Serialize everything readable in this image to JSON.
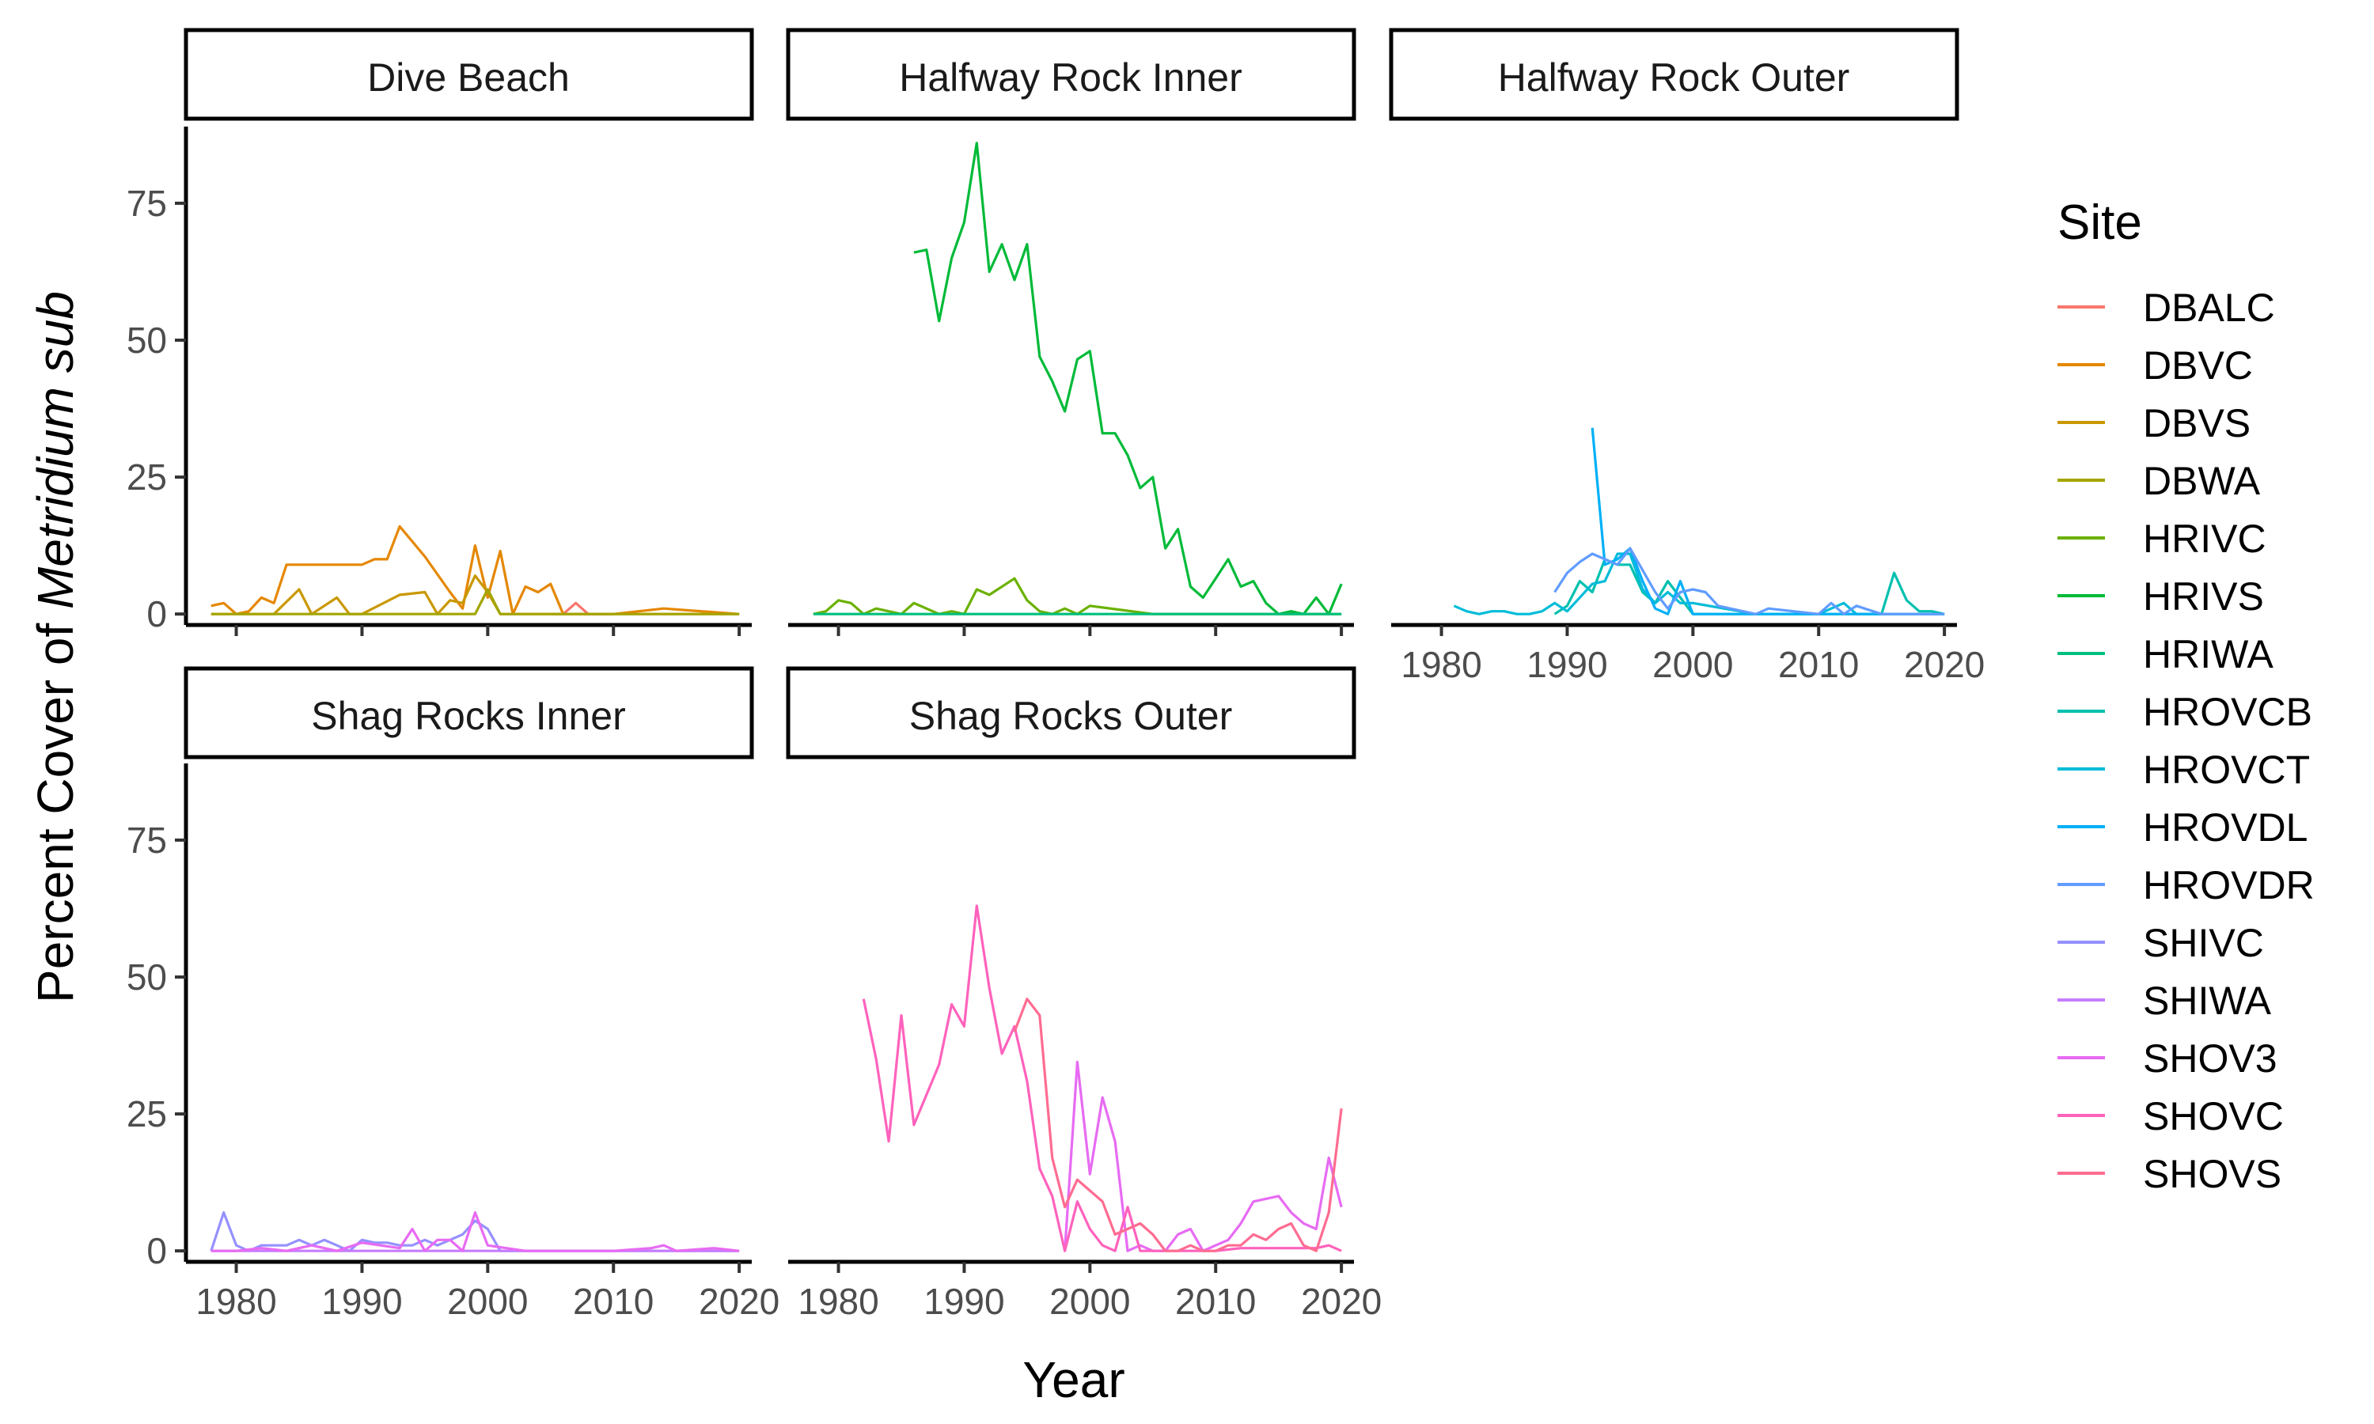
{
  "chart_data": {
    "type": "line",
    "xlabel": "Year",
    "ylabel": {
      "prefix": "Percent Cover of ",
      "italic": "Metridium sub"
    },
    "xlim": [
      1976,
      2021
    ],
    "ylim": [
      -2,
      89
    ],
    "x_ticks": [
      1980,
      1990,
      2000,
      2010,
      2020
    ],
    "y_ticks": [
      0,
      25,
      50,
      75
    ],
    "legend": {
      "title": "Site",
      "placement": "right",
      "entries": [
        {
          "name": "DBALC",
          "color": "#F8766D"
        },
        {
          "name": "DBVC",
          "color": "#E58700"
        },
        {
          "name": "DBVS",
          "color": "#C99800"
        },
        {
          "name": "DBWA",
          "color": "#A3A500"
        },
        {
          "name": "HRIVC",
          "color": "#6BB100"
        },
        {
          "name": "HRIVS",
          "color": "#00BA38"
        },
        {
          "name": "HRIWA",
          "color": "#00BF7D"
        },
        {
          "name": "HROVCB",
          "color": "#00C0AF"
        },
        {
          "name": "HROVCT",
          "color": "#00BCD8"
        },
        {
          "name": "HROVDL",
          "color": "#00B0F6"
        },
        {
          "name": "HROVDR",
          "color": "#619CFF"
        },
        {
          "name": "SHIVC",
          "color": "#9590FF"
        },
        {
          "name": "SHIWA",
          "color": "#C77CFF"
        },
        {
          "name": "SHOV3",
          "color": "#E76BF3"
        },
        {
          "name": "SHOVC",
          "color": "#FF62BC"
        },
        {
          "name": "SHOVS",
          "color": "#FF6C91"
        }
      ]
    },
    "panels": [
      {
        "title": "Dive Beach",
        "series": [
          {
            "name": "DBALC",
            "x": [
              2005,
              2006,
              2007,
              2008,
              2009,
              2010
            ],
            "y": [
              0,
              0,
              2,
              0,
              0,
              0
            ]
          },
          {
            "name": "DBVC",
            "x": [
              1978,
              1979,
              1980,
              1981,
              1982,
              1983,
              1984,
              1990,
              1991,
              1992,
              1993,
              1995,
              1997,
              1998,
              1999,
              2000,
              2001,
              2002,
              2003,
              2004,
              2005,
              2006,
              2007,
              2010,
              2014,
              2020
            ],
            "y": [
              1.5,
              2,
              0,
              0.5,
              3,
              2,
              9,
              9,
              10,
              10,
              16,
              10.5,
              4,
              1,
              12.5,
              3,
              11.5,
              0,
              5,
              4,
              5.5,
              0,
              0,
              0,
              1,
              0
            ]
          },
          {
            "name": "DBVS",
            "x": [
              1978,
              1983,
              1985,
              1986,
              1988,
              1989,
              1990,
              1993,
              1995,
              1996,
              1997,
              1998,
              1999,
              2000,
              2001,
              2002,
              2005,
              2010,
              2015,
              2020
            ],
            "y": [
              0,
              0,
              4.5,
              0,
              3,
              0,
              0,
              3.5,
              4,
              0,
              2.5,
              2,
              7,
              4,
              0,
              0,
              0,
              0,
              0,
              0
            ]
          },
          {
            "name": "DBWA",
            "x": [
              1978,
              1985,
              1990,
              1995,
              1998,
              1999,
              2000,
              2001,
              2002,
              2010,
              2020
            ],
            "y": [
              0,
              0,
              0,
              0,
              0,
              0,
              4.5,
              0,
              0,
              0,
              0
            ]
          }
        ]
      },
      {
        "title": "Halfway Rock Inner",
        "series": [
          {
            "name": "HRIVC",
            "x": [
              1978,
              1979,
              1980,
              1981,
              1982,
              1983,
              1984,
              1985,
              1986,
              1988,
              1989,
              1990,
              1991,
              1992,
              1994,
              1995,
              1996,
              1997,
              1998,
              1999,
              2000,
              2005,
              2010,
              2015,
              2020
            ],
            "y": [
              0,
              0.5,
              2.5,
              2,
              0,
              1,
              0.5,
              0,
              2,
              0,
              0.5,
              0,
              4.5,
              3.5,
              6.5,
              2.5,
              0.5,
              0,
              1,
              0,
              1.5,
              0,
              0,
              0,
              0
            ]
          },
          {
            "name": "HRIVS",
            "x": [
              1986,
              1987,
              1988,
              1989,
              1990,
              1991,
              1992,
              1993,
              1994,
              1995,
              1996,
              1997,
              1998,
              1999,
              2000,
              2001,
              2002,
              2003,
              2004,
              2005,
              2006,
              2007,
              2008,
              2009,
              2010,
              2011,
              2012,
              2013,
              2014,
              2015,
              2016,
              2017,
              2018,
              2019,
              2020
            ],
            "y": [
              66,
              66.5,
              53.5,
              65,
              71.5,
              86,
              62.5,
              67.5,
              61,
              67.5,
              47,
              42.5,
              37,
              46.5,
              48,
              33,
              33,
              29,
              23,
              25,
              12,
              15.5,
              5,
              3,
              6.5,
              10,
              5,
              6,
              2,
              0,
              0.5,
              0,
              3,
              0,
              5.5
            ]
          },
          {
            "name": "HRIWA",
            "x": [
              1978,
              1985,
              1990,
              1995,
              2000,
              2005,
              2010,
              2015,
              2020
            ],
            "y": [
              0,
              0,
              0,
              0,
              0,
              0,
              0,
              0,
              0
            ]
          }
        ]
      },
      {
        "title": "Halfway Rock Outer",
        "series": [
          {
            "name": "HROVCB",
            "x": [
              1989,
              1990,
              1991,
              1992,
              1993,
              1994,
              1995,
              1996,
              1997,
              1998,
              1999,
              2000,
              2001,
              2005,
              2010,
              2015,
              2016,
              2017,
              2018,
              2019,
              2020
            ],
            "y": [
              0,
              1.5,
              6,
              4,
              10,
              9,
              9,
              4,
              2,
              6,
              3,
              0,
              0,
              0,
              0,
              0,
              7.5,
              2.5,
              0.5,
              0.5,
              0
            ]
          },
          {
            "name": "HROVCT",
            "x": [
              1981,
              1982,
              1983,
              1984,
              1985,
              1986,
              1987,
              1988,
              1989,
              1990,
              1991,
              1992,
              1993,
              1994,
              1995,
              1996,
              1997,
              1998,
              1999,
              2000,
              2005,
              2010,
              2012,
              2013,
              2015,
              2020
            ],
            "y": [
              1.5,
              0.5,
              0,
              0.5,
              0.5,
              0,
              0,
              0.5,
              2,
              0.5,
              3,
              5.5,
              6,
              11,
              11,
              4.5,
              2,
              4,
              2,
              2,
              0,
              0,
              2,
              0,
              0,
              0
            ]
          },
          {
            "name": "HROVDL",
            "x": [
              1992,
              1993,
              1994,
              1995,
              1996,
              1997,
              1998,
              1999,
              2000,
              2005,
              2010,
              2015,
              2020
            ],
            "y": [
              34,
              9,
              10,
              12,
              6,
              1,
              0,
              6,
              0,
              0,
              0,
              0,
              0
            ]
          },
          {
            "name": "HROVDR",
            "x": [
              1989,
              1990,
              1991,
              1992,
              1993,
              1994,
              1995,
              1996,
              1997,
              1998,
              1999,
              2000,
              2001,
              2002,
              2005,
              2006,
              2010,
              2011,
              2012,
              2013,
              2015,
              2020
            ],
            "y": [
              4,
              7.5,
              9.5,
              11,
              10,
              9,
              12,
              8,
              4,
              1,
              4,
              4.5,
              4,
              1.5,
              0,
              1,
              0,
              2,
              0,
              1.5,
              0,
              0
            ]
          }
        ]
      },
      {
        "title": "Shag Rocks Inner",
        "series": [
          {
            "name": "SHIVC",
            "x": [
              1978,
              1979,
              1980,
              1981,
              1982,
              1983,
              1984,
              1985,
              1986,
              1987,
              1988,
              1989,
              1990,
              1991,
              1992,
              1993,
              1994,
              1995,
              1996,
              1997,
              1998,
              1999,
              2000,
              2001,
              2005,
              2010,
              2015,
              2020
            ],
            "y": [
              0,
              7,
              1,
              0,
              1,
              1,
              1,
              2,
              1,
              2,
              1,
              0,
              2,
              1.5,
              1.5,
              1,
              1,
              2,
              1,
              2,
              3,
              5.5,
              4,
              0,
              0,
              0,
              0,
              0
            ]
          },
          {
            "name": "SHIWA",
            "x": [
              1978,
              1980,
              1985,
              1990,
              1995,
              2000,
              2005,
              2010,
              2015,
              2020
            ],
            "y": [
              0,
              0,
              0,
              0,
              0,
              0,
              0,
              0,
              0,
              0
            ]
          },
          {
            "name": "SHOV3",
            "x": [
              1978,
              1980,
              1982,
              1984,
              1986,
              1988,
              1990,
              1993,
              1994,
              1995,
              1996,
              1997,
              1998,
              1999,
              2000,
              2003,
              2010,
              2013,
              2014,
              2015,
              2018,
              2020
            ],
            "y": [
              0,
              0,
              0.5,
              0,
              1,
              0,
              1.5,
              0.5,
              4,
              0,
              2,
              2,
              0,
              7,
              1,
              0,
              0,
              0.5,
              1,
              0,
              0.5,
              0
            ]
          }
        ]
      },
      {
        "title": "Shag Rocks Outer",
        "series": [
          {
            "name": "SHOV3",
            "x": [
              1998,
              1999,
              2000,
              2001,
              2002,
              2003,
              2004,
              2005,
              2006,
              2007,
              2008,
              2009,
              2010,
              2011,
              2012,
              2013,
              2015,
              2016,
              2017,
              2018,
              2019,
              2020
            ],
            "y": [
              0,
              34.5,
              14,
              28,
              20,
              0,
              1,
              0,
              0,
              3,
              4,
              0,
              1,
              2,
              5,
              9,
              10,
              7,
              5,
              4,
              17,
              8
            ]
          },
          {
            "name": "SHOVC",
            "x": [
              1982,
              1983,
              1984,
              1985,
              1986,
              1988,
              1989,
              1990,
              1991,
              1992,
              1993,
              1994,
              1995,
              1996,
              1997,
              1998,
              1999,
              2000,
              2001,
              2002,
              2003,
              2004,
              2005,
              2010,
              2012,
              2014,
              2016,
              2018,
              2019,
              2020
            ],
            "y": [
              46,
              35,
              20,
              43,
              23,
              34,
              45,
              41,
              63,
              48,
              36,
              41,
              31,
              15,
              10,
              0,
              9,
              4,
              1,
              0,
              8,
              0,
              0,
              0,
              0.5,
              0.5,
              0.5,
              0.5,
              1,
              0
            ]
          },
          {
            "name": "SHOVS",
            "x": [
              1994,
              1995,
              1996,
              1997,
              1998,
              1999,
              2000,
              2001,
              2002,
              2003,
              2004,
              2005,
              2006,
              2007,
              2008,
              2009,
              2010,
              2011,
              2012,
              2013,
              2014,
              2015,
              2016,
              2017,
              2018,
              2019,
              2020
            ],
            "y": [
              40,
              46,
              43,
              17,
              8,
              13,
              11,
              9,
              3,
              4,
              5,
              3,
              0,
              0,
              1,
              0,
              0,
              1,
              1,
              3,
              2,
              4,
              5,
              1,
              0,
              7,
              26
            ]
          }
        ]
      }
    ]
  }
}
